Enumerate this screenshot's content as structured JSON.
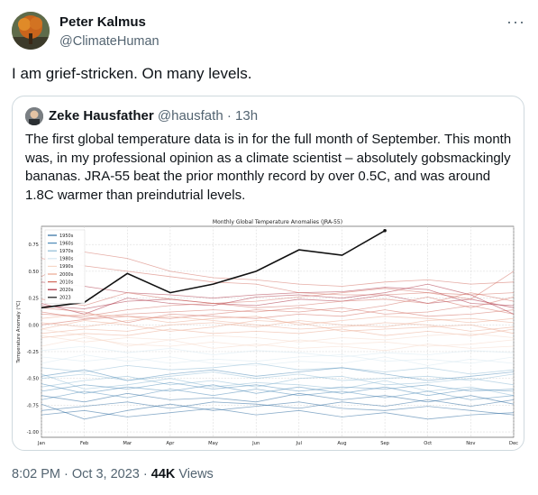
{
  "tweet": {
    "author_name": "Peter Kalmus",
    "author_handle": "@ClimateHuman",
    "more_icon": "more-horizontal-icon",
    "text": "I am grief-stricken. On many levels.",
    "time": "8:02 PM · Oct 3, 2023 · ",
    "views_count": "44K",
    "views_label": " Views"
  },
  "quote": {
    "author_name": "Zeke Hausfather",
    "author_handle": "@hausfath",
    "time": "· 13h",
    "text": "The first global temperature data is in for the full month of September. This month was, in my professional opinion as a climate scientist – absolutely gobsmackingly bananas. JRA-55 beat the prior monthly record by over 0.5C, and was around 1.8C warmer than preindutrial levels."
  },
  "chart_data": {
    "type": "line",
    "title": "Monthly Global Temperature Anomalies (JRA-55)",
    "ylabel": "Temperature Anomaly (°C)",
    "xlabel": "",
    "categories": [
      "Jan",
      "Feb",
      "Mar",
      "Apr",
      "May",
      "Jun",
      "Jul",
      "Aug",
      "Sep",
      "Oct",
      "Nov",
      "Dec"
    ],
    "ylim": [
      -1.05,
      0.92
    ],
    "yticks": [
      0.75,
      0.5,
      0.25,
      0.0,
      -0.25,
      -0.5,
      -0.75,
      -1.0
    ],
    "ytick_labels": [
      "0.75",
      "0.50",
      "0.25",
      "0.00",
      "-0.25",
      "-0.50",
      "-0.75",
      "-1.00"
    ],
    "grid": true,
    "legend_position": "top-left",
    "legend": [
      {
        "label": "1950s",
        "color": "#2b6a9e"
      },
      {
        "label": "1960s",
        "color": "#4d8ab8"
      },
      {
        "label": "1970s",
        "color": "#8dbad6"
      },
      {
        "label": "1980s",
        "color": "#d6e7f1"
      },
      {
        "label": "1990s",
        "color": "#f6d7c6"
      },
      {
        "label": "2000s",
        "color": "#eba78e"
      },
      {
        "label": "2010s",
        "color": "#d26a5c"
      },
      {
        "label": "2020s",
        "color": "#a8283a"
      },
      {
        "label": "2023",
        "color": "#111111"
      }
    ],
    "series": [
      {
        "name": "2023",
        "color": "#111111",
        "values": [
          0.16,
          0.21,
          0.48,
          0.3,
          0.38,
          0.5,
          0.7,
          0.65,
          0.88,
          null,
          null,
          null
        ]
      },
      {
        "name": "2020s",
        "color": "#a8283a",
        "values": [
          0.4,
          0.36,
          0.3,
          0.28,
          0.25,
          0.28,
          0.3,
          0.31,
          0.35,
          0.33,
          0.2,
          0.18
        ]
      },
      {
        "name": "2020s",
        "color": "#a8283a",
        "values": [
          0.2,
          0.1,
          0.25,
          0.2,
          0.18,
          0.26,
          0.28,
          0.25,
          0.3,
          0.38,
          0.28,
          0.1
        ]
      },
      {
        "name": "2020s",
        "color": "#a8283a",
        "values": [
          0.18,
          0.15,
          0.22,
          0.24,
          0.2,
          0.18,
          0.24,
          0.22,
          0.28,
          0.2,
          0.24,
          0.16
        ]
      },
      {
        "name": "2010s",
        "color": "#d26a5c",
        "values": [
          0.62,
          0.55,
          0.5,
          0.45,
          0.4,
          0.38,
          0.3,
          0.28,
          0.28,
          0.3,
          0.28,
          0.3
        ]
      },
      {
        "name": "2010s",
        "color": "#d26a5c",
        "values": [
          0.45,
          0.68,
          0.62,
          0.5,
          0.44,
          0.42,
          0.38,
          0.36,
          0.4,
          0.42,
          0.38,
          0.4
        ]
      },
      {
        "name": "2010s",
        "color": "#d26a5c",
        "values": [
          0.24,
          0.18,
          0.3,
          0.24,
          0.2,
          0.22,
          0.26,
          0.3,
          0.34,
          0.3,
          0.24,
          0.5
        ]
      },
      {
        "name": "2010s",
        "color": "#d26a5c",
        "values": [
          0.1,
          0.08,
          0.14,
          0.18,
          0.2,
          0.16,
          0.18,
          0.22,
          0.24,
          0.2,
          0.3,
          0.22
        ]
      },
      {
        "name": "2010s",
        "color": "#d26a5c",
        "values": [
          0.12,
          0.06,
          0.1,
          0.12,
          0.14,
          0.12,
          0.16,
          0.12,
          0.18,
          0.26,
          0.16,
          0.26
        ]
      },
      {
        "name": "2010s",
        "color": "#d26a5c",
        "values": [
          0.0,
          0.05,
          0.08,
          0.06,
          0.1,
          0.14,
          0.12,
          0.16,
          0.1,
          0.12,
          0.18,
          0.1
        ]
      },
      {
        "name": "2010s",
        "color": "#d26a5c",
        "values": [
          0.16,
          0.12,
          0.02,
          0.1,
          0.08,
          0.06,
          0.1,
          0.08,
          0.14,
          0.08,
          0.1,
          0.14
        ]
      },
      {
        "name": "2000s",
        "color": "#eba78e",
        "values": [
          0.06,
          0.1,
          0.08,
          0.02,
          0.06,
          0.08,
          0.0,
          0.04,
          0.08,
          0.06,
          0.02,
          0.06
        ]
      },
      {
        "name": "2000s",
        "color": "#eba78e",
        "values": [
          -0.08,
          -0.04,
          -0.06,
          0.0,
          0.02,
          -0.02,
          0.04,
          0.0,
          -0.02,
          0.04,
          0.06,
          0.02
        ]
      },
      {
        "name": "2000s",
        "color": "#eba78e",
        "values": [
          0.02,
          -0.02,
          0.04,
          0.08,
          0.04,
          0.0,
          -0.04,
          -0.02,
          0.02,
          0.0,
          -0.06,
          -0.02
        ]
      },
      {
        "name": "2000s",
        "color": "#eba78e",
        "values": [
          -0.04,
          0.04,
          0.0,
          -0.06,
          -0.02,
          0.04,
          0.02,
          -0.06,
          -0.04,
          -0.02,
          0.0,
          -0.08
        ]
      },
      {
        "name": "2000s",
        "color": "#eba78e",
        "values": [
          -0.12,
          -0.08,
          -0.1,
          -0.04,
          -0.08,
          -0.06,
          -0.08,
          -0.04,
          -0.1,
          -0.06,
          -0.1,
          -0.04
        ]
      },
      {
        "name": "1990s",
        "color": "#f6d7c6",
        "values": [
          -0.1,
          -0.16,
          -0.12,
          -0.14,
          -0.1,
          -0.12,
          -0.16,
          -0.12,
          -0.14,
          -0.1,
          -0.08,
          -0.12
        ]
      },
      {
        "name": "1990s",
        "color": "#f6d7c6",
        "values": [
          -0.2,
          -0.12,
          -0.18,
          -0.2,
          -0.16,
          -0.2,
          -0.14,
          -0.18,
          -0.16,
          -0.2,
          -0.18,
          -0.14
        ]
      },
      {
        "name": "1990s",
        "color": "#f6d7c6",
        "values": [
          -0.04,
          -0.1,
          -0.2,
          -0.14,
          -0.22,
          -0.18,
          -0.22,
          -0.2,
          -0.24,
          -0.18,
          -0.22,
          -0.2
        ]
      },
      {
        "name": "1980s",
        "color": "#d6e7f1",
        "values": [
          -0.24,
          -0.2,
          -0.26,
          -0.22,
          -0.28,
          -0.24,
          -0.26,
          -0.3,
          -0.26,
          -0.28,
          -0.24,
          -0.26
        ]
      },
      {
        "name": "1980s",
        "color": "#d6e7f1",
        "values": [
          -0.3,
          -0.34,
          -0.3,
          -0.36,
          -0.32,
          -0.34,
          -0.3,
          -0.28,
          -0.34,
          -0.32,
          -0.36,
          -0.3
        ]
      },
      {
        "name": "1980s",
        "color": "#d6e7f1",
        "values": [
          -0.36,
          -0.28,
          -0.34,
          -0.3,
          -0.36,
          -0.38,
          -0.34,
          -0.36,
          -0.3,
          -0.38,
          -0.32,
          -0.36
        ]
      },
      {
        "name": "1970s",
        "color": "#8dbad6",
        "values": [
          -0.4,
          -0.44,
          -0.38,
          -0.42,
          -0.4,
          -0.36,
          -0.42,
          -0.4,
          -0.44,
          -0.4,
          -0.46,
          -0.42
        ]
      },
      {
        "name": "1970s",
        "color": "#8dbad6",
        "values": [
          -0.5,
          -0.46,
          -0.52,
          -0.48,
          -0.44,
          -0.5,
          -0.46,
          -0.52,
          -0.5,
          -0.48,
          -0.52,
          -0.46
        ]
      },
      {
        "name": "1970s",
        "color": "#8dbad6",
        "values": [
          -0.58,
          -0.52,
          -0.48,
          -0.56,
          -0.52,
          -0.58,
          -0.5,
          -0.48,
          -0.56,
          -0.54,
          -0.5,
          -0.56
        ]
      },
      {
        "name": "1970s",
        "color": "#8dbad6",
        "values": [
          -0.46,
          -0.6,
          -0.56,
          -0.5,
          -0.58,
          -0.54,
          -0.56,
          -0.6,
          -0.52,
          -0.62,
          -0.58,
          -0.66
        ]
      },
      {
        "name": "1960s",
        "color": "#4d8ab8",
        "values": [
          -0.48,
          -0.42,
          -0.52,
          -0.46,
          -0.42,
          -0.48,
          -0.44,
          -0.4,
          -0.46,
          -0.52,
          -0.48,
          -0.44
        ]
      },
      {
        "name": "1960s",
        "color": "#4d8ab8",
        "values": [
          -0.62,
          -0.56,
          -0.6,
          -0.54,
          -0.6,
          -0.56,
          -0.62,
          -0.58,
          -0.6,
          -0.56,
          -0.62,
          -0.6
        ]
      },
      {
        "name": "1960s",
        "color": "#4d8ab8",
        "values": [
          -0.55,
          -0.64,
          -0.58,
          -0.62,
          -0.56,
          -0.64,
          -0.58,
          -0.64,
          -0.58,
          -0.66,
          -0.6,
          -0.62
        ]
      },
      {
        "name": "1960s",
        "color": "#4d8ab8",
        "values": [
          -0.7,
          -0.62,
          -0.68,
          -0.6,
          -0.66,
          -0.6,
          -0.66,
          -0.62,
          -0.68,
          -0.62,
          -0.7,
          -0.66
        ]
      },
      {
        "name": "1950s",
        "color": "#2b6a9e",
        "values": [
          -0.66,
          -0.72,
          -0.64,
          -0.7,
          -0.68,
          -0.72,
          -0.64,
          -0.7,
          -0.66,
          -0.72,
          -0.66,
          -0.74
        ]
      },
      {
        "name": "1950s",
        "color": "#2b6a9e",
        "values": [
          -0.8,
          -0.76,
          -0.72,
          -0.78,
          -0.72,
          -0.74,
          -0.78,
          -0.72,
          -0.76,
          -0.7,
          -0.76,
          -0.7
        ]
      },
      {
        "name": "1950s",
        "color": "#2b6a9e",
        "values": [
          -0.74,
          -0.88,
          -0.8,
          -0.74,
          -0.8,
          -0.76,
          -0.72,
          -0.78,
          -0.8,
          -0.76,
          -0.8,
          -0.84
        ]
      },
      {
        "name": "1950s",
        "color": "#2b6a9e",
        "values": [
          -0.84,
          -0.8,
          -0.86,
          -0.82,
          -0.78,
          -0.84,
          -0.8,
          -0.86,
          -0.82,
          -0.88,
          -0.84,
          -0.82
        ]
      }
    ]
  }
}
